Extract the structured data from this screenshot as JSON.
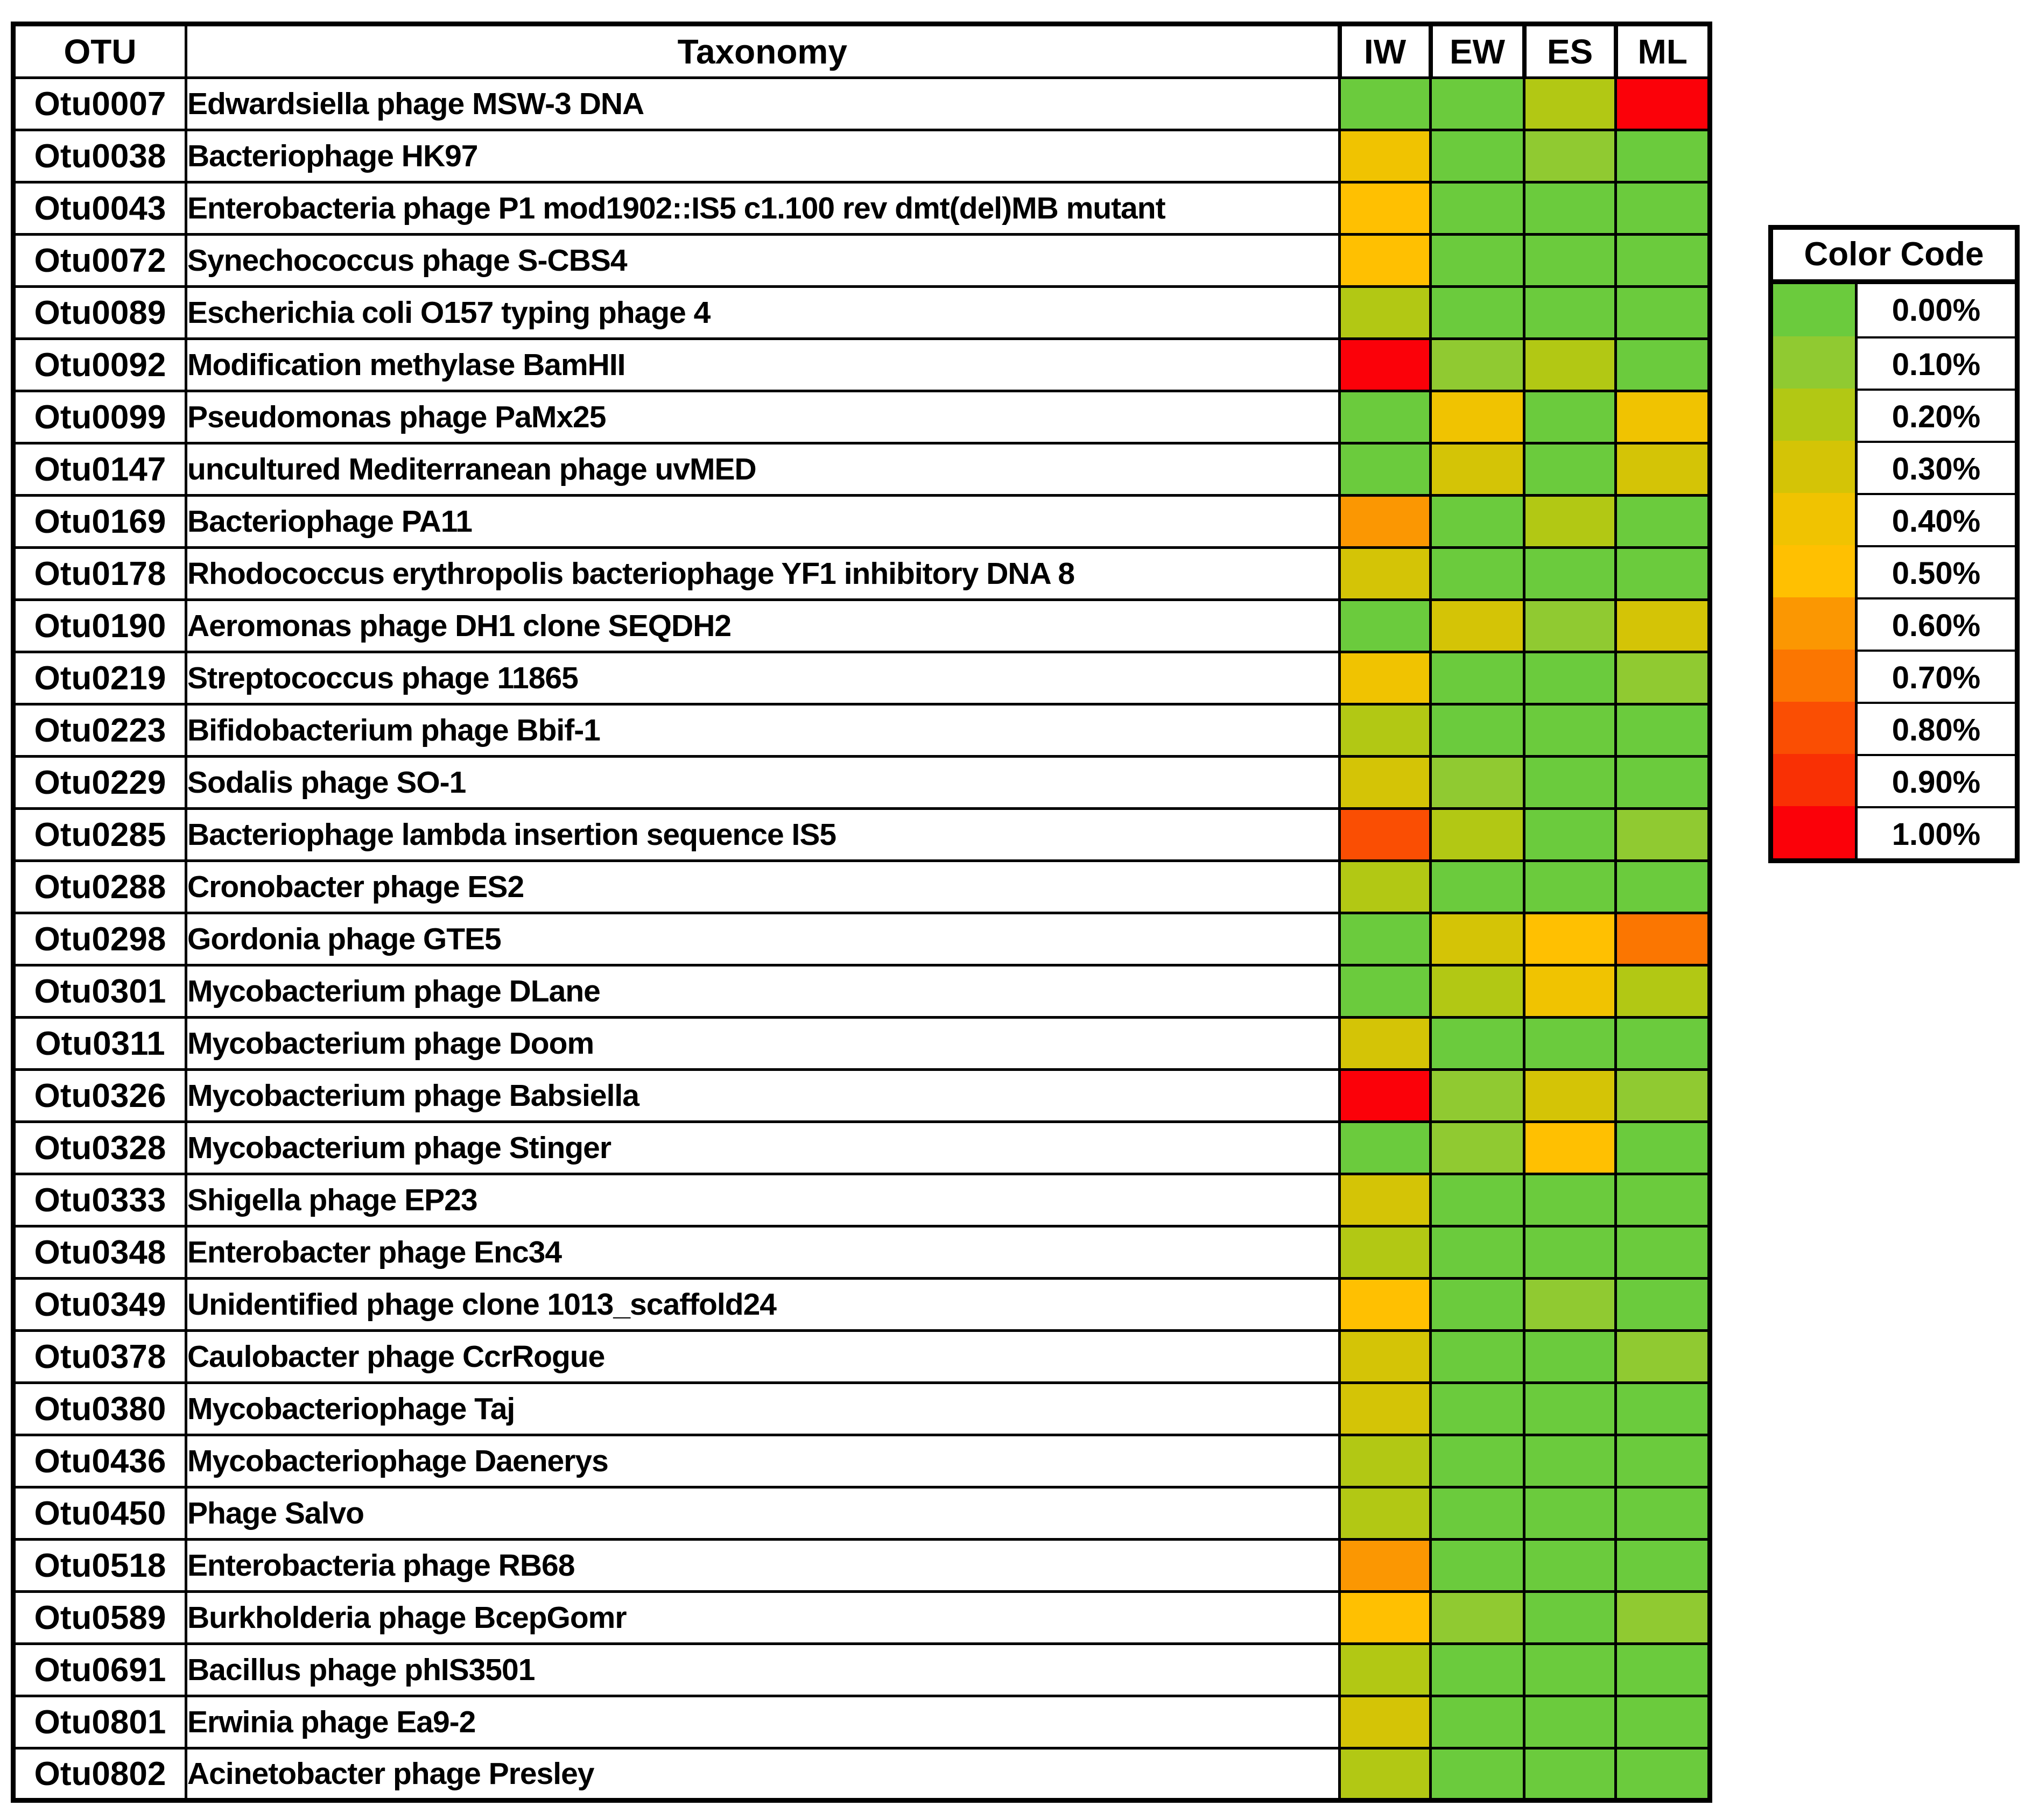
{
  "chart_data": {
    "type": "heatmap",
    "title": "OTU relative abundance heatmap",
    "columns": [
      "OTU",
      "Taxonomy",
      "IW",
      "EW",
      "ES",
      "ML"
    ],
    "sample_columns": [
      "IW",
      "EW",
      "ES",
      "ML"
    ],
    "value_scale": [
      "0.00%",
      "0.10%",
      "0.20%",
      "0.30%",
      "0.40%",
      "0.50%",
      "0.60%",
      "0.70%",
      "0.80%",
      "0.90%",
      "1.00%"
    ],
    "palette": {
      "0.00%": "#6BCB3D",
      "0.10%": "#90CA31",
      "0.20%": "#B2C814",
      "0.30%": "#D4C406",
      "0.40%": "#F0C301",
      "0.50%": "#FFC001",
      "0.60%": "#FB9702",
      "0.70%": "#FB7601",
      "0.80%": "#FA4E03",
      "0.90%": "#F93004",
      "1.00%": "#FB0109"
    },
    "legend": {
      "title": "Color Code",
      "entries": [
        "0.00%",
        "0.10%",
        "0.20%",
        "0.30%",
        "0.40%",
        "0.50%",
        "0.60%",
        "0.70%",
        "0.80%",
        "0.90%",
        "1.00%"
      ]
    },
    "rows": [
      {
        "otu": "Otu0007",
        "taxonomy": "Edwardsiella phage MSW-3 DNA",
        "values": {
          "IW": "0.00%",
          "EW": "0.00%",
          "ES": "0.20%",
          "ML": "1.00%"
        }
      },
      {
        "otu": "Otu0038",
        "taxonomy": "Bacteriophage HK97",
        "values": {
          "IW": "0.40%",
          "EW": "0.00%",
          "ES": "0.10%",
          "ML": "0.00%"
        }
      },
      {
        "otu": "Otu0043",
        "taxonomy": "Enterobacteria phage P1 mod1902::IS5 c1.100 rev dmt(del)MB mutant",
        "values": {
          "IW": "0.50%",
          "EW": "0.00%",
          "ES": "0.00%",
          "ML": "0.00%"
        }
      },
      {
        "otu": "Otu0072",
        "taxonomy": "Synechococcus phage S-CBS4",
        "values": {
          "IW": "0.50%",
          "EW": "0.00%",
          "ES": "0.00%",
          "ML": "0.00%"
        }
      },
      {
        "otu": "Otu0089",
        "taxonomy": "Escherichia coli O157 typing phage 4",
        "values": {
          "IW": "0.20%",
          "EW": "0.00%",
          "ES": "0.00%",
          "ML": "0.00%"
        }
      },
      {
        "otu": "Otu0092",
        "taxonomy": "Modification methylase BamHII",
        "values": {
          "IW": "1.00%",
          "EW": "0.10%",
          "ES": "0.20%",
          "ML": "0.00%"
        }
      },
      {
        "otu": "Otu0099",
        "taxonomy": "Pseudomonas phage PaMx25",
        "values": {
          "IW": "0.00%",
          "EW": "0.40%",
          "ES": "0.00%",
          "ML": "0.40%"
        }
      },
      {
        "otu": "Otu0147",
        "taxonomy": "uncultured Mediterranean phage uvMED",
        "values": {
          "IW": "0.00%",
          "EW": "0.30%",
          "ES": "0.00%",
          "ML": "0.30%"
        }
      },
      {
        "otu": "Otu0169",
        "taxonomy": "Bacteriophage PA11",
        "values": {
          "IW": "0.60%",
          "EW": "0.00%",
          "ES": "0.20%",
          "ML": "0.00%"
        }
      },
      {
        "otu": "Otu0178",
        "taxonomy": "Rhodococcus erythropolis bacteriophage YF1 inhibitory DNA 8",
        "values": {
          "IW": "0.30%",
          "EW": "0.00%",
          "ES": "0.00%",
          "ML": "0.00%"
        }
      },
      {
        "otu": "Otu0190",
        "taxonomy": "Aeromonas phage DH1 clone SEQDH2",
        "values": {
          "IW": "0.00%",
          "EW": "0.30%",
          "ES": "0.10%",
          "ML": "0.30%"
        }
      },
      {
        "otu": "Otu0219",
        "taxonomy": "Streptococcus phage 11865",
        "values": {
          "IW": "0.40%",
          "EW": "0.00%",
          "ES": "0.00%",
          "ML": "0.10%"
        }
      },
      {
        "otu": "Otu0223",
        "taxonomy": "Bifidobacterium phage Bbif-1",
        "values": {
          "IW": "0.20%",
          "EW": "0.00%",
          "ES": "0.00%",
          "ML": "0.00%"
        }
      },
      {
        "otu": "Otu0229",
        "taxonomy": "Sodalis phage SO-1",
        "values": {
          "IW": "0.30%",
          "EW": "0.10%",
          "ES": "0.00%",
          "ML": "0.00%"
        }
      },
      {
        "otu": "Otu0285",
        "taxonomy": "Bacteriophage lambda insertion sequence IS5",
        "values": {
          "IW": "0.80%",
          "EW": "0.20%",
          "ES": "0.00%",
          "ML": "0.10%"
        }
      },
      {
        "otu": "Otu0288",
        "taxonomy": "Cronobacter phage ES2",
        "values": {
          "IW": "0.20%",
          "EW": "0.00%",
          "ES": "0.00%",
          "ML": "0.00%"
        }
      },
      {
        "otu": "Otu0298",
        "taxonomy": "Gordonia phage GTE5",
        "values": {
          "IW": "0.00%",
          "EW": "0.30%",
          "ES": "0.50%",
          "ML": "0.70%"
        }
      },
      {
        "otu": "Otu0301",
        "taxonomy": "Mycobacterium phage DLane",
        "values": {
          "IW": "0.00%",
          "EW": "0.20%",
          "ES": "0.40%",
          "ML": "0.20%"
        }
      },
      {
        "otu": "Otu0311",
        "taxonomy": "Mycobacterium phage Doom",
        "values": {
          "IW": "0.30%",
          "EW": "0.00%",
          "ES": "0.00%",
          "ML": "0.00%"
        }
      },
      {
        "otu": "Otu0326",
        "taxonomy": "Mycobacterium phage Babsiella",
        "values": {
          "IW": "1.00%",
          "EW": "0.10%",
          "ES": "0.30%",
          "ML": "0.10%"
        }
      },
      {
        "otu": "Otu0328",
        "taxonomy": "Mycobacterium phage Stinger",
        "values": {
          "IW": "0.00%",
          "EW": "0.10%",
          "ES": "0.50%",
          "ML": "0.00%"
        }
      },
      {
        "otu": "Otu0333",
        "taxonomy": "Shigella phage EP23",
        "values": {
          "IW": "0.30%",
          "EW": "0.00%",
          "ES": "0.00%",
          "ML": "0.00%"
        }
      },
      {
        "otu": "Otu0348",
        "taxonomy": "Enterobacter phage Enc34",
        "values": {
          "IW": "0.20%",
          "EW": "0.00%",
          "ES": "0.00%",
          "ML": "0.00%"
        }
      },
      {
        "otu": "Otu0349",
        "taxonomy": "Unidentified phage clone 1013_scaffold24",
        "values": {
          "IW": "0.50%",
          "EW": "0.00%",
          "ES": "0.10%",
          "ML": "0.00%"
        }
      },
      {
        "otu": "Otu0378",
        "taxonomy": "Caulobacter phage CcrRogue",
        "values": {
          "IW": "0.30%",
          "EW": "0.00%",
          "ES": "0.00%",
          "ML": "0.10%"
        }
      },
      {
        "otu": "Otu0380",
        "taxonomy": "Mycobacteriophage Taj",
        "values": {
          "IW": "0.30%",
          "EW": "0.00%",
          "ES": "0.00%",
          "ML": "0.00%"
        }
      },
      {
        "otu": "Otu0436",
        "taxonomy": "Mycobacteriophage Daenerys",
        "values": {
          "IW": "0.20%",
          "EW": "0.00%",
          "ES": "0.00%",
          "ML": "0.00%"
        }
      },
      {
        "otu": "Otu0450",
        "taxonomy": "Phage Salvo",
        "values": {
          "IW": "0.20%",
          "EW": "0.00%",
          "ES": "0.00%",
          "ML": "0.00%"
        }
      },
      {
        "otu": "Otu0518",
        "taxonomy": "Enterobacteria phage RB68",
        "values": {
          "IW": "0.60%",
          "EW": "0.00%",
          "ES": "0.00%",
          "ML": "0.00%"
        }
      },
      {
        "otu": "Otu0589",
        "taxonomy": "Burkholderia phage BcepGomr",
        "values": {
          "IW": "0.50%",
          "EW": "0.10%",
          "ES": "0.00%",
          "ML": "0.10%"
        }
      },
      {
        "otu": "Otu0691",
        "taxonomy": "Bacillus phage phIS3501",
        "values": {
          "IW": "0.20%",
          "EW": "0.00%",
          "ES": "0.00%",
          "ML": "0.00%"
        }
      },
      {
        "otu": "Otu0801",
        "taxonomy": "Erwinia phage Ea9-2",
        "values": {
          "IW": "0.30%",
          "EW": "0.00%",
          "ES": "0.00%",
          "ML": "0.00%"
        }
      },
      {
        "otu": "Otu0802",
        "taxonomy": "Acinetobacter phage Presley",
        "values": {
          "IW": "0.20%",
          "EW": "0.00%",
          "ES": "0.00%",
          "ML": "0.00%"
        }
      }
    ]
  }
}
